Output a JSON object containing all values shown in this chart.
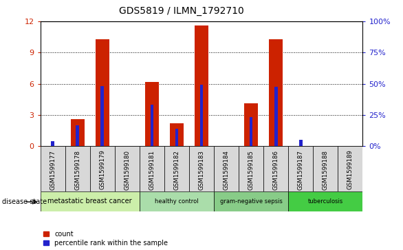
{
  "title": "GDS5819 / ILMN_1792710",
  "samples": [
    "GSM1599177",
    "GSM1599178",
    "GSM1599179",
    "GSM1599180",
    "GSM1599181",
    "GSM1599182",
    "GSM1599183",
    "GSM1599184",
    "GSM1599185",
    "GSM1599186",
    "GSM1599187",
    "GSM1599188",
    "GSM1599189"
  ],
  "counts": [
    0,
    2.6,
    10.3,
    0,
    6.2,
    2.2,
    11.6,
    0,
    4.1,
    10.3,
    0,
    0,
    0
  ],
  "percentile_ranks": [
    4.2,
    16.5,
    48.0,
    0,
    33.0,
    14.2,
    49.5,
    0,
    23.5,
    47.5,
    5.0,
    0,
    0
  ],
  "disease_groups": [
    {
      "label": "metastatic breast cancer",
      "start": 0,
      "end": 4,
      "color": "#cceeaa"
    },
    {
      "label": "healthy control",
      "start": 4,
      "end": 7,
      "color": "#aaddaa"
    },
    {
      "label": "gram-negative sepsis",
      "start": 7,
      "end": 10,
      "color": "#88cc88"
    },
    {
      "label": "tuberculosis",
      "start": 10,
      "end": 13,
      "color": "#44cc44"
    }
  ],
  "bar_color": "#cc2200",
  "percentile_color": "#2222cc",
  "ylim_left": [
    0,
    12
  ],
  "ylim_right": [
    0,
    100
  ],
  "yticks_left": [
    0,
    3,
    6,
    9,
    12
  ],
  "yticks_right": [
    0,
    25,
    50,
    75,
    100
  ],
  "left_tick_color": "#cc2200",
  "right_tick_color": "#2222cc",
  "legend_count_label": "count",
  "legend_percentile_label": "percentile rank within the sample",
  "sample_box_color": "#d8d8d8",
  "plot_bg_color": "#ffffff"
}
